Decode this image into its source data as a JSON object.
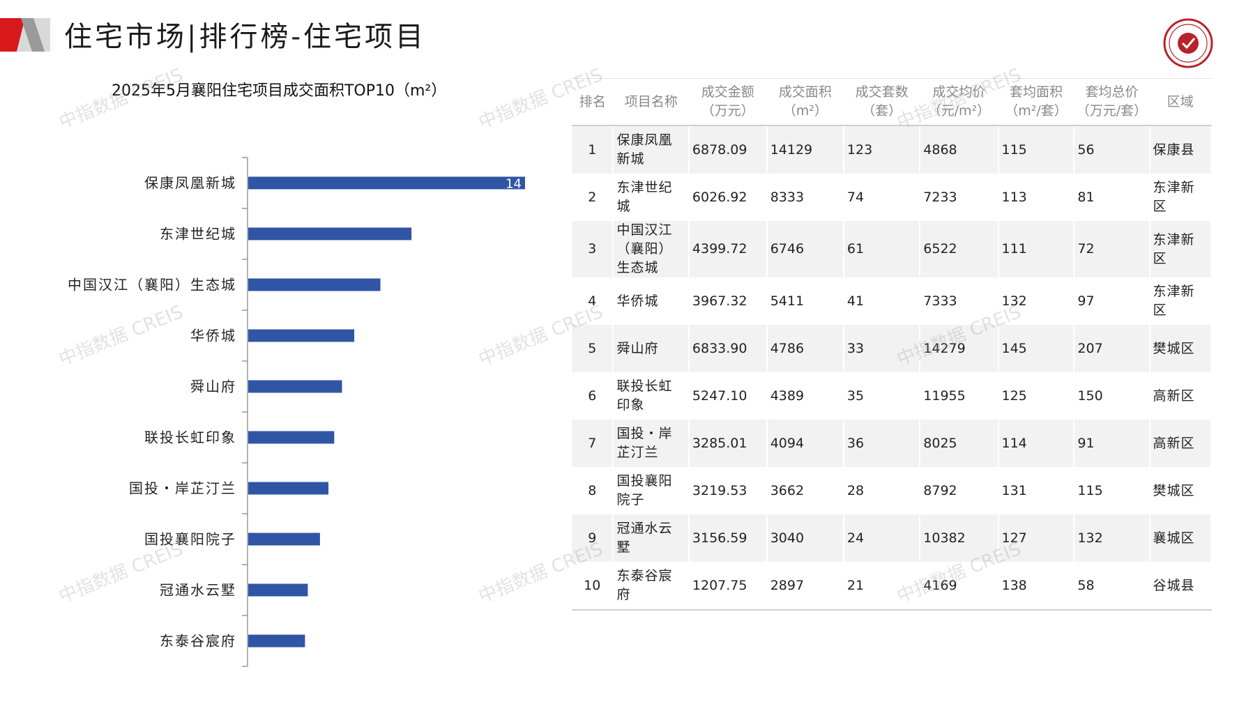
{
  "page": {
    "title": "住宅市场|排行榜-住宅项目",
    "watermark": "中指数据 CREIS"
  },
  "chart_data": {
    "type": "bar",
    "orientation": "horizontal",
    "title": "2025年5月襄阳住宅项目成交面积TOP10（m²）",
    "categories": [
      "保康凤凰新城",
      "东津世纪城",
      "中国汉江（襄阳）生态城",
      "华侨城",
      "舜山府",
      "联投长虹印象",
      "国投・岸芷汀兰",
      "国投襄阳院子",
      "冠通水云墅",
      "东泰谷宸府"
    ],
    "values": [
      14129,
      8333,
      6746,
      5411,
      4786,
      4389,
      4094,
      3662,
      3040,
      2897
    ],
    "visible_data_label": "14",
    "xlim": [
      0,
      14129
    ],
    "grid": false,
    "bar_color": "#2f55a4"
  },
  "table": {
    "headers": [
      [
        "排名"
      ],
      [
        "项目名称"
      ],
      [
        "成交金额",
        "（万元）"
      ],
      [
        "成交面积",
        "（m²）"
      ],
      [
        "成交套数",
        "（套）"
      ],
      [
        "成交均价",
        "（元/m²）"
      ],
      [
        "套均面积",
        "（m²/套）"
      ],
      [
        "套均总价",
        "（万元/套）"
      ],
      [
        "区域"
      ]
    ],
    "rows": [
      [
        "1",
        "保康凤凰新城",
        "6878.09",
        "14129",
        "123",
        "4868",
        "115",
        "56",
        "保康县"
      ],
      [
        "2",
        "东津世纪城",
        "6026.92",
        "8333",
        "74",
        "7233",
        "113",
        "81",
        "东津新区"
      ],
      [
        "3",
        "中国汉江（襄阳）生态城",
        "4399.72",
        "6746",
        "61",
        "6522",
        "111",
        "72",
        "东津新区"
      ],
      [
        "4",
        "华侨城",
        "3967.32",
        "5411",
        "41",
        "7333",
        "132",
        "97",
        "东津新区"
      ],
      [
        "5",
        "舜山府",
        "6833.90",
        "4786",
        "33",
        "14279",
        "145",
        "207",
        "樊城区"
      ],
      [
        "6",
        "联投长虹印象",
        "5247.10",
        "4389",
        "35",
        "11955",
        "125",
        "150",
        "高新区"
      ],
      [
        "7",
        "国投・岸芷汀兰",
        "3285.01",
        "4094",
        "36",
        "8025",
        "114",
        "91",
        "高新区"
      ],
      [
        "8",
        "国投襄阳院子",
        "3219.53",
        "3662",
        "28",
        "8792",
        "131",
        "115",
        "樊城区"
      ],
      [
        "9",
        "冠通水云墅",
        "3156.59",
        "3040",
        "24",
        "10382",
        "127",
        "132",
        "襄城区"
      ],
      [
        "10",
        "东泰谷宸府",
        "1207.75",
        "2897",
        "21",
        "4169",
        "138",
        "58",
        "谷城县"
      ]
    ]
  },
  "colors": {
    "accent_red": "#d7191c",
    "bar_blue": "#2f55a4",
    "grey": "#c8c8c8"
  }
}
